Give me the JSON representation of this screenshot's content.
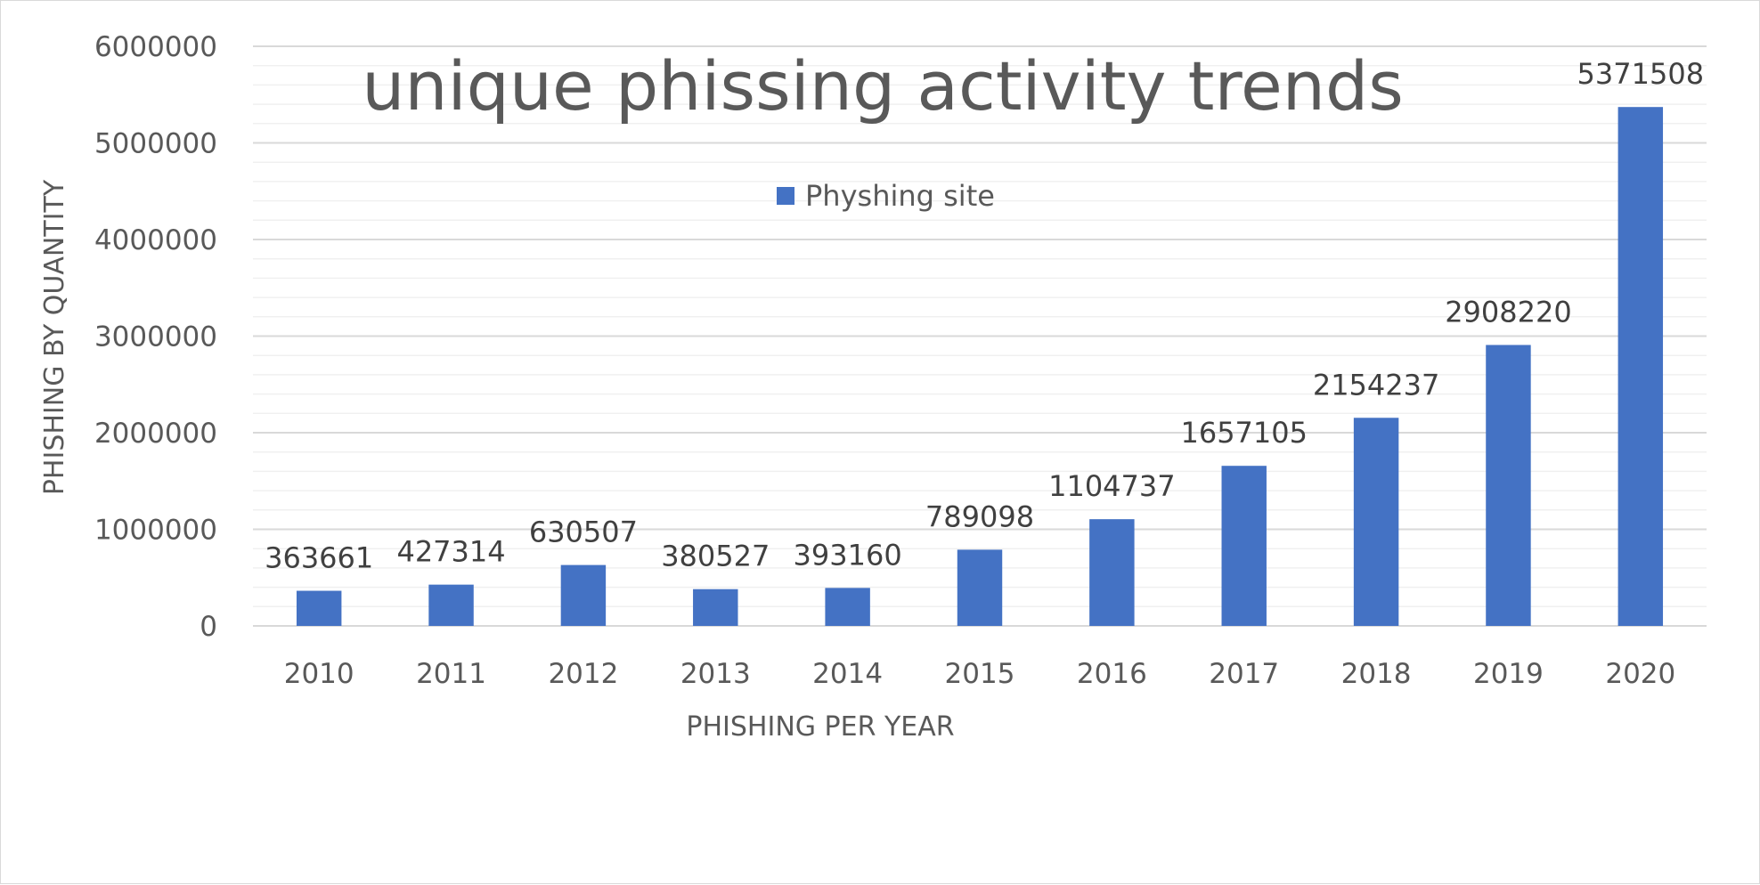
{
  "chart_data": {
    "type": "bar",
    "title": "unique phissing activity trends",
    "xlabel": "PHISHING PER YEAR",
    "ylabel": "PHISHING BY QUANTITY",
    "categories": [
      "2010",
      "2011",
      "2012",
      "2013",
      "2014",
      "2015",
      "2016",
      "2017",
      "2018",
      "2019",
      "2020"
    ],
    "series": [
      {
        "name": "Physhing site",
        "color": "#4472c4",
        "values": [
          363661,
          427314,
          630507,
          380527,
          393160,
          789098,
          1104737,
          1657105,
          2154237,
          2908220,
          5371508
        ]
      }
    ],
    "ylim": [
      0,
      6000000
    ],
    "yticks": [
      "0",
      "1000000",
      "2000000",
      "3000000",
      "4000000",
      "5000000",
      "6000000"
    ],
    "ymajor_step": 1000000,
    "yminor_step": 200000,
    "grid": true,
    "legend_position": "top-center",
    "data_labels": true
  }
}
